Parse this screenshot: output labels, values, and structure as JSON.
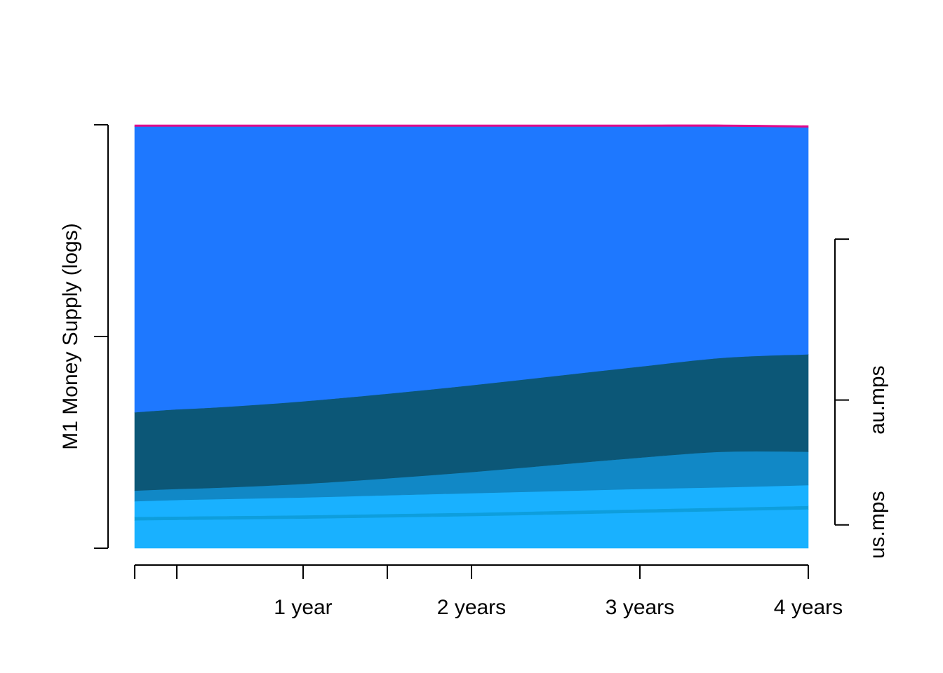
{
  "chart_data": {
    "type": "area",
    "stacked": true,
    "ylabel": "M1 Money Supply (logs)",
    "xlabel": "",
    "x_unit": "years",
    "xlim": [
      0,
      4
    ],
    "x_ticks": [
      0,
      0.25,
      1,
      1.5,
      2,
      3,
      4
    ],
    "x_tick_labels": [
      "",
      "",
      "1 year",
      "",
      "2 years",
      "3 years",
      "4 years"
    ],
    "y_ticks_left": [
      0,
      0.5,
      1
    ],
    "y_tick_labels_left": [
      "",
      "",
      ""
    ],
    "ylim": [
      0,
      1
    ],
    "right_axis": {
      "ticks": [
        0.055,
        0.35,
        0.73
      ],
      "labels": [
        "us.mps",
        "au.mps",
        ""
      ]
    },
    "grid": false,
    "legend": "none",
    "x": [
      0,
      0.25,
      0.5,
      1,
      1.5,
      2,
      2.5,
      3,
      3.5,
      4
    ],
    "series": [
      {
        "color": "#19B1FF",
        "values": [
          0.066,
          0.067,
          0.068,
          0.07,
          0.073,
          0.076,
          0.08,
          0.084,
          0.088,
          0.092
        ]
      },
      {
        "color": "#0E9EDC",
        "values": [
          0.008,
          0.008,
          0.008,
          0.008,
          0.008,
          0.008,
          0.008,
          0.008,
          0.008,
          0.008
        ]
      },
      {
        "color": "#19B1FF",
        "values": [
          0.037,
          0.039,
          0.04,
          0.042,
          0.044,
          0.046,
          0.047,
          0.048,
          0.048,
          0.049
        ]
      },
      {
        "color": "#1188C6",
        "values": [
          0.025,
          0.026,
          0.027,
          0.032,
          0.04,
          0.05,
          0.062,
          0.074,
          0.084,
          0.079
        ]
      },
      {
        "color": "#0C5777",
        "values": [
          0.185,
          0.188,
          0.19,
          0.195,
          0.2,
          0.205,
          0.21,
          0.215,
          0.222,
          0.23
        ]
      },
      {
        "color": "#1E78FF",
        "values": [
          0.675,
          0.668,
          0.663,
          0.649,
          0.631,
          0.611,
          0.589,
          0.567,
          0.546,
          0.536
        ]
      },
      {
        "color": "#E0068B",
        "values": [
          0.004,
          0.004,
          0.004,
          0.004,
          0.004,
          0.004,
          0.004,
          0.004,
          0.004,
          0.004
        ]
      }
    ]
  }
}
